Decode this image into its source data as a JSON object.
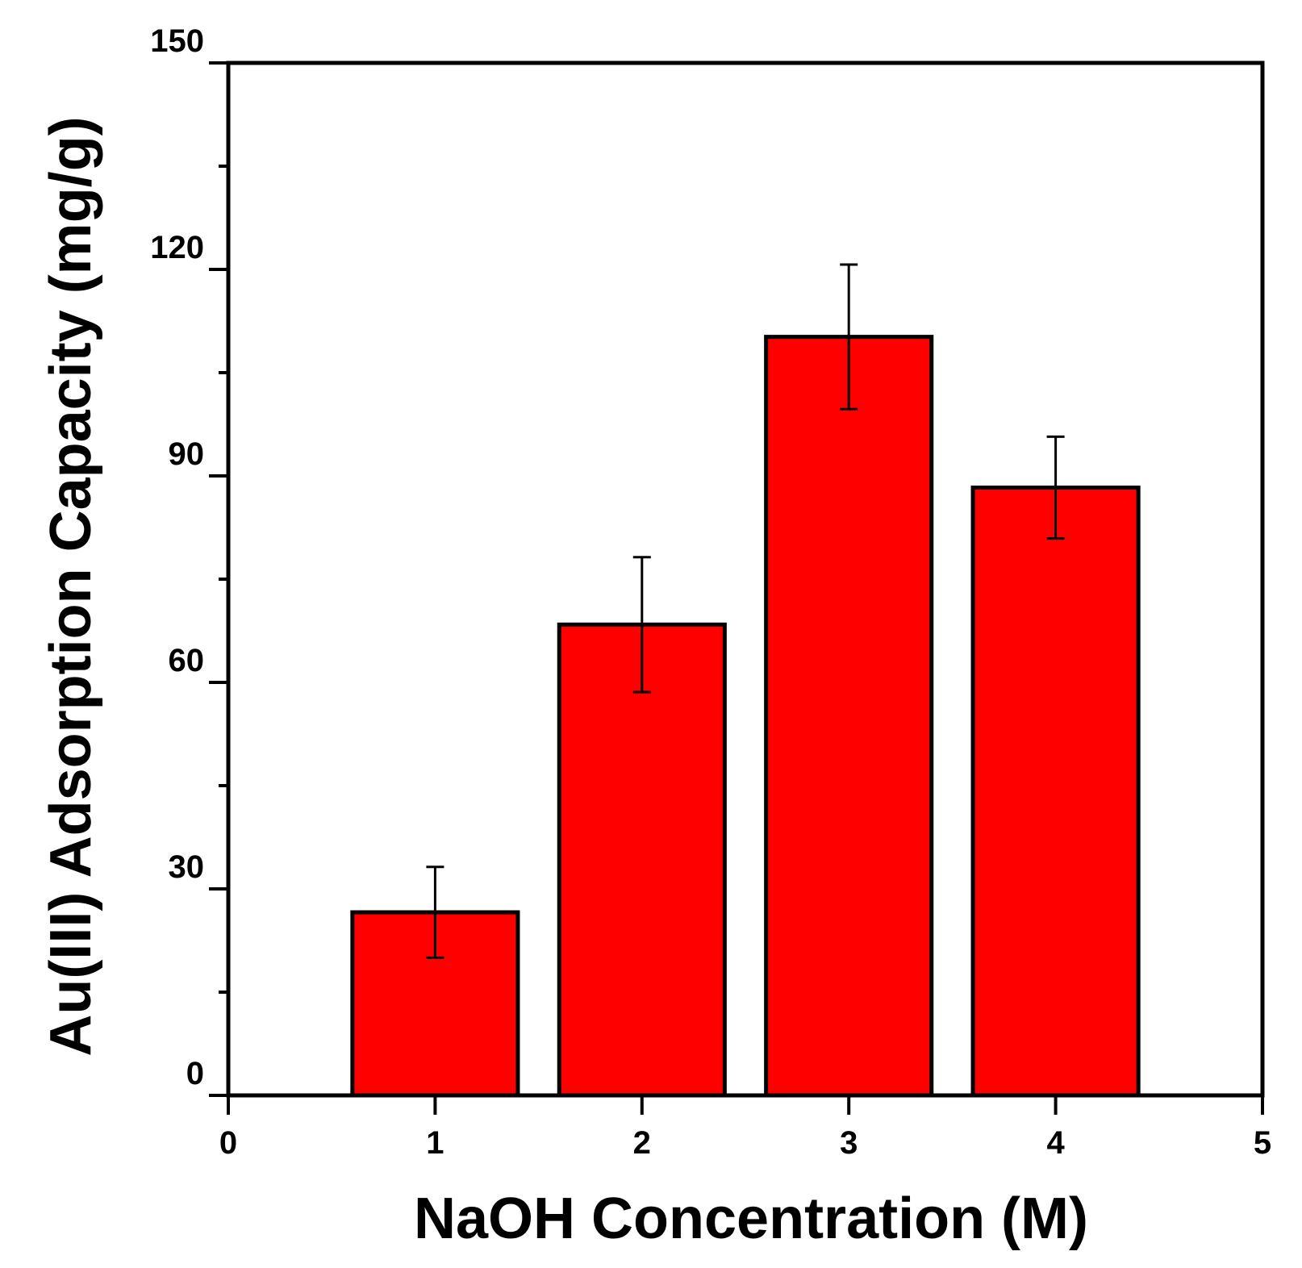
{
  "chart_data": {
    "type": "bar",
    "title": "",
    "xlabel": "NaOH Concentration (M)",
    "ylabel": "Au(III) Adsorption Capacity (mg/g)",
    "xlim": [
      0,
      5
    ],
    "ylim": [
      0,
      150
    ],
    "x_ticks": [
      "0",
      "1",
      "2",
      "3",
      "4",
      "5"
    ],
    "y_ticks": [
      "0",
      "30",
      "60",
      "90",
      "120",
      "150"
    ],
    "y_minor_step": 15,
    "grid": false,
    "bar_width": 0.8,
    "bar_color": "#ff0000",
    "edge_color": "#000000",
    "categories": [
      1,
      2,
      3,
      4
    ],
    "values": [
      26.6,
      68.4,
      110.2,
      88.3
    ],
    "errors": [
      6.6,
      9.8,
      10.5,
      7.4
    ]
  }
}
